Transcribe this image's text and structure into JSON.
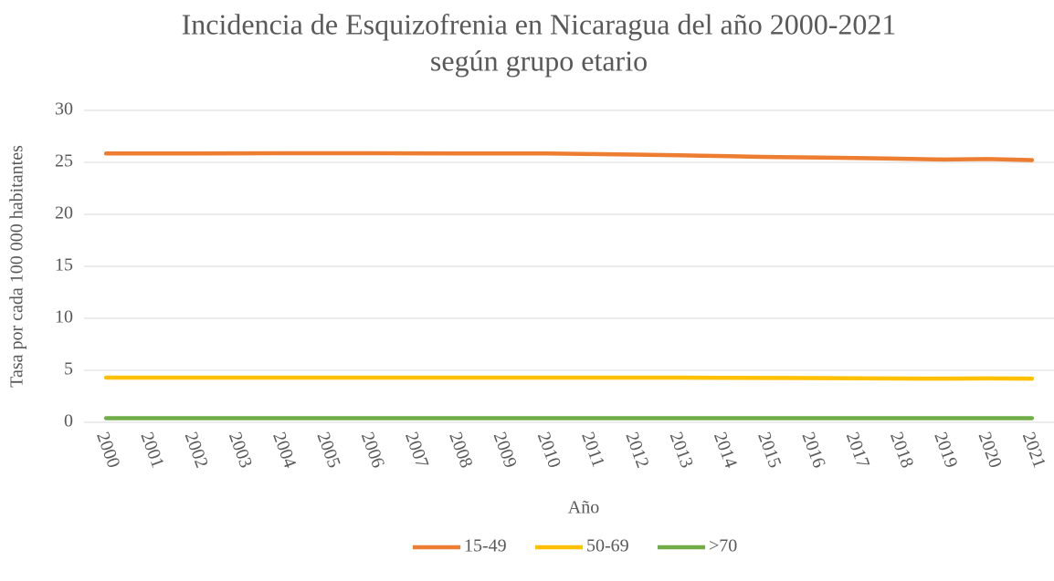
{
  "chart_data": {
    "type": "line",
    "title": "Incidencia de Esquizofrenia en Nicaragua del año 2000-2021",
    "subtitle": "según grupo etario",
    "x_label": "Año",
    "y_label": "Tasa por cada 100 000 habitantes",
    "categories": [
      "2000",
      "2001",
      "2002",
      "2003",
      "2004",
      "2005",
      "2006",
      "2007",
      "2008",
      "2009",
      "2010",
      "2011",
      "2012",
      "2013",
      "2014",
      "2015",
      "2016",
      "2017",
      "2018",
      "2019",
      "2020",
      "2021"
    ],
    "series": [
      {
        "name": "15-49",
        "color": "#ed7d31",
        "values": [
          25.85,
          25.85,
          25.85,
          25.87,
          25.88,
          25.88,
          25.88,
          25.87,
          25.86,
          25.85,
          25.85,
          25.8,
          25.75,
          25.68,
          25.6,
          25.52,
          25.47,
          25.42,
          25.35,
          25.27,
          25.32,
          25.22
        ]
      },
      {
        "name": "50-69",
        "color": "#ffc000",
        "values": [
          4.3,
          4.3,
          4.3,
          4.3,
          4.3,
          4.3,
          4.3,
          4.3,
          4.3,
          4.3,
          4.3,
          4.3,
          4.3,
          4.3,
          4.28,
          4.27,
          4.25,
          4.23,
          4.21,
          4.2,
          4.22,
          4.2
        ]
      },
      {
        "name": ">70",
        "color": "#70ad47",
        "values": [
          0.4,
          0.4,
          0.4,
          0.4,
          0.4,
          0.4,
          0.4,
          0.4,
          0.4,
          0.4,
          0.4,
          0.4,
          0.4,
          0.4,
          0.4,
          0.4,
          0.4,
          0.4,
          0.4,
          0.4,
          0.4,
          0.4
        ]
      }
    ],
    "ylim": [
      0,
      30
    ],
    "yticks": [
      0,
      5,
      10,
      15,
      20,
      25,
      30
    ],
    "grid": true,
    "legend": "bottom"
  }
}
